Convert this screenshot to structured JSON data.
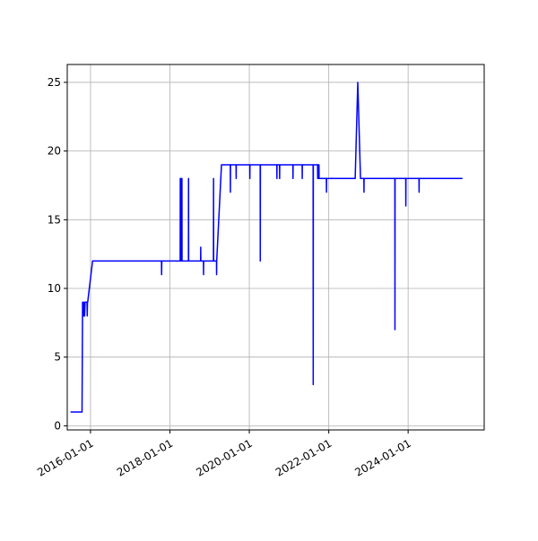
{
  "chart_data": {
    "type": "line",
    "title": "",
    "xlabel": "",
    "ylabel": "",
    "x_axis_type": "date",
    "xlim": [
      "2015-06-01",
      "2025-12-01"
    ],
    "ylim": [
      -0.3,
      26.3
    ],
    "x_ticks": [
      "2016-01-01",
      "2018-01-01",
      "2020-01-01",
      "2022-01-01",
      "2024-01-01"
    ],
    "y_ticks": [
      0,
      5,
      10,
      15,
      20,
      25
    ],
    "grid": true,
    "colors": {
      "line": "#0000ff",
      "grid": "#b0b0b0",
      "axes": "#000000"
    },
    "series": [
      {
        "x": [
          "2015-07-01",
          "2015-10-15",
          "2015-10-20",
          "2015-10-25",
          "2015-10-28",
          "2015-11-01",
          "2015-11-03",
          "2015-11-08",
          "2015-11-12",
          "2015-11-30",
          "2015-12-02",
          "2015-12-04",
          "2015-12-06",
          "2016-01-20",
          "2016-01-21",
          "2016-01-26",
          "2016-02-08",
          "2017-10-15",
          "2017-10-16",
          "2017-10-18",
          "2018-04-05",
          "2018-04-06",
          "2018-04-07",
          "2018-04-12",
          "2018-04-13",
          "2018-04-14",
          "2018-04-20",
          "2018-04-21",
          "2018-04-22",
          "2018-06-20",
          "2018-06-21",
          "2018-06-22",
          "2018-10-10",
          "2018-10-11",
          "2018-10-12",
          "2018-11-05",
          "2018-11-06",
          "2018-11-07",
          "2019-02-05",
          "2019-02-06",
          "2019-02-07",
          "2019-03-05",
          "2019-03-06",
          "2019-03-07",
          "2019-04-20",
          "2019-07-10",
          "2019-07-11",
          "2019-07-12",
          "2019-09-01",
          "2019-09-02",
          "2019-09-03",
          "2020-01-05",
          "2020-01-06",
          "2020-01-07",
          "2020-04-10",
          "2020-04-11",
          "2020-04-12",
          "2020-09-10",
          "2020-09-11",
          "2020-09-12",
          "2020-10-05",
          "2020-10-06",
          "2020-10-07",
          "2021-02-05",
          "2021-02-06",
          "2021-02-07",
          "2021-05-01",
          "2021-05-02",
          "2021-05-03",
          "2021-08-10",
          "2021-08-11",
          "2021-08-12",
          "2021-09-20",
          "2021-09-21",
          "2021-09-22",
          "2021-10-01",
          "2021-10-02",
          "2021-10-03",
          "2021-10-04",
          "2021-12-10",
          "2021-12-11",
          "2021-12-12",
          "2022-09-01",
          "2022-09-25",
          "2022-10-20",
          "2022-11-20",
          "2022-11-21",
          "2022-11-22",
          "2023-09-01",
          "2023-09-02",
          "2023-09-03",
          "2023-12-10",
          "2023-12-11",
          "2023-12-12",
          "2024-04-10",
          "2024-04-11",
          "2024-04-12",
          "2025-05-15"
        ],
        "y": [
          1,
          1,
          9,
          8,
          9,
          8,
          9,
          8,
          9,
          9,
          8,
          9,
          9,
          12,
          12,
          12,
          12,
          12,
          11,
          12,
          12,
          18,
          12,
          12,
          18,
          12,
          12,
          18,
          12,
          12,
          18,
          12,
          12,
          13,
          12,
          12,
          11,
          12,
          12,
          18,
          12,
          12,
          11,
          12,
          19,
          19,
          17,
          19,
          19,
          18,
          19,
          19,
          18,
          19,
          19,
          12,
          19,
          19,
          18,
          19,
          19,
          18,
          19,
          19,
          18,
          19,
          19,
          18,
          19,
          19,
          3,
          19,
          19,
          18,
          19,
          19,
          18,
          19,
          18,
          18,
          17,
          18,
          18,
          25,
          18,
          18,
          17,
          18,
          18,
          7,
          18,
          18,
          16,
          18,
          18,
          17,
          18,
          18
        ]
      }
    ]
  }
}
